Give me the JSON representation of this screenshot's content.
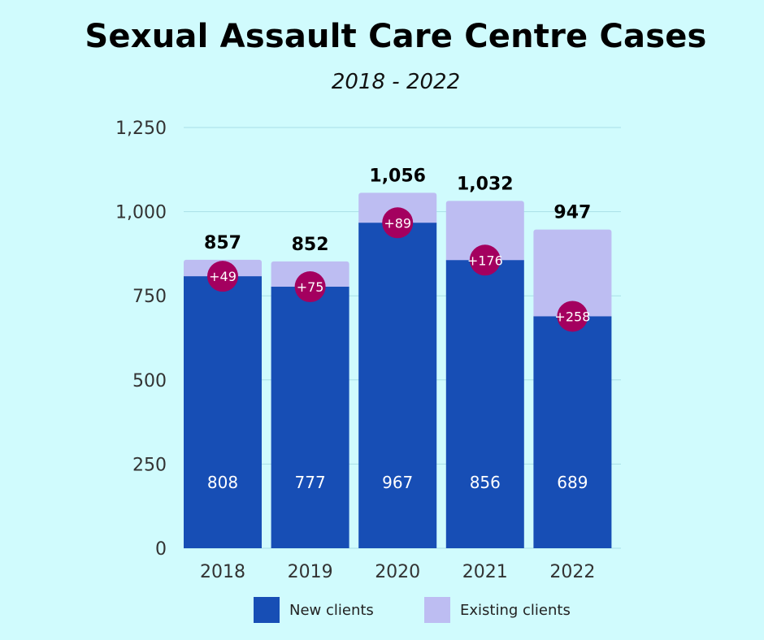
{
  "chart_data": {
    "type": "bar",
    "stacked": true,
    "title": "Sexual Assault Care Centre Cases",
    "subtitle": "2018 - 2022",
    "categories": [
      "2018",
      "2019",
      "2020",
      "2021",
      "2022"
    ],
    "series": [
      {
        "name": "New clients",
        "values": [
          808,
          777,
          967,
          856,
          689
        ],
        "color": "#174eb5"
      },
      {
        "name": "Existing clients",
        "values": [
          49,
          75,
          89,
          176,
          258
        ],
        "color": "#bdbdf2"
      }
    ],
    "totals": [
      857,
      852,
      1056,
      1032,
      947
    ],
    "total_labels": [
      "857",
      "852",
      "1,056",
      "1,032",
      "947"
    ],
    "new_labels": [
      "808",
      "777",
      "967",
      "856",
      "689"
    ],
    "diff_labels": [
      "+49",
      "+75",
      "+89",
      "+176",
      "+258"
    ],
    "ylim": [
      0,
      1250
    ],
    "yticks": [
      0,
      250,
      500,
      750,
      1000,
      1250
    ],
    "ytick_labels": [
      "0",
      "250",
      "500",
      "750",
      "1,000",
      "1,250"
    ],
    "grid": true,
    "legend_position": "bottom",
    "marker_color": "#a4005f"
  }
}
